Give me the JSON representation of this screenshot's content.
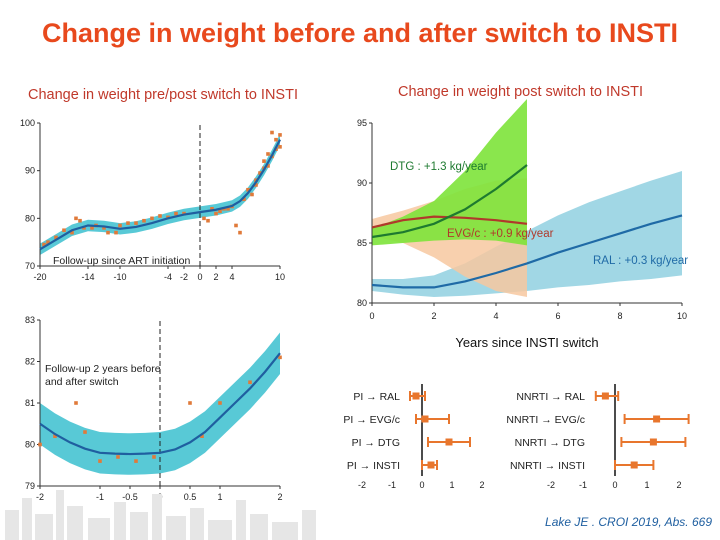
{
  "colors": {
    "title": "#e8491d",
    "subtitle": "#c0392b",
    "fit_line": "#1f5fa0",
    "band": "#3bbfcf",
    "points": "#e07a3a",
    "evg_band": "#f7c8a0",
    "evg_line": "#b0392b",
    "dtg_band": "#7de33a",
    "dtg_line": "#1e7a30",
    "ral_band": "#90d0e0",
    "ral_line": "#1f6aa6",
    "forest": "#e8762d",
    "footer": "#1f5fa0"
  },
  "main_title": "Change in weight before and after switch to INSTI",
  "left_title": "Change in weight pre/post switch to INSTI",
  "right_title": "Change in weight post switch to INSTI",
  "footer": "Lake JE . CROI 2019, Abs. 669",
  "chart_data": [
    {
      "id": "followup-art",
      "type": "scatter",
      "annotation": "Follow-up since ART initiation",
      "xlim": [
        -20,
        10
      ],
      "ylim": [
        70,
        100
      ],
      "x_ticks": [
        -20,
        -14,
        -10,
        -4,
        -2,
        0,
        2,
        4,
        10
      ],
      "x_tick_labels": [
        "-20",
        "-14",
        "-10",
        "-4",
        "-2",
        "0",
        "2",
        "4",
        "10"
      ],
      "y_ticks": [
        70,
        80,
        90,
        100
      ],
      "y_tick_labels": [
        "70",
        "80",
        "90",
        "100"
      ],
      "vline": 0,
      "fit": {
        "x": [
          -20,
          -18,
          -16,
          -14,
          -12,
          -10,
          -8,
          -6,
          -4,
          -2,
          0,
          2,
          4,
          5,
          6,
          7,
          8,
          9,
          10
        ],
        "y": [
          73.5,
          75.5,
          77.5,
          78.5,
          78.3,
          77.8,
          78.2,
          79.0,
          80.0,
          80.8,
          81.3,
          81.8,
          82.6,
          83.6,
          85.3,
          87.6,
          90.2,
          93.2,
          96.5
        ]
      },
      "band_half_width": 1.2,
      "points": [
        [
          -19.5,
          74.5
        ],
        [
          -19,
          75
        ],
        [
          -18,
          76
        ],
        [
          -17,
          77.5
        ],
        [
          -16,
          77
        ],
        [
          -15.5,
          80
        ],
        [
          -15,
          79.5
        ],
        [
          -14.5,
          78
        ],
        [
          -13.5,
          78
        ],
        [
          -13,
          78.5
        ],
        [
          -12,
          78
        ],
        [
          -11.5,
          77
        ],
        [
          -10.5,
          77
        ],
        [
          -10,
          78.5
        ],
        [
          -9,
          79
        ],
        [
          -8,
          79
        ],
        [
          -7,
          79.5
        ],
        [
          -6,
          80
        ],
        [
          -5,
          80.5
        ],
        [
          -4,
          80.2
        ],
        [
          -3,
          81
        ],
        [
          -2,
          81
        ],
        [
          0.5,
          80
        ],
        [
          1,
          79.5
        ],
        [
          1.5,
          82
        ],
        [
          2,
          81
        ],
        [
          2.5,
          81.5
        ],
        [
          3,
          82
        ],
        [
          3.5,
          82
        ],
        [
          4,
          82.5
        ],
        [
          4.5,
          78.5
        ],
        [
          5,
          77
        ],
        [
          5.5,
          84
        ],
        [
          6,
          86
        ],
        [
          7,
          87
        ],
        [
          7.5,
          89.5
        ],
        [
          8,
          92
        ],
        [
          8.5,
          91
        ],
        [
          9,
          93
        ],
        [
          9.5,
          94.5
        ],
        [
          10,
          95
        ],
        [
          9.5,
          96.5
        ],
        [
          8.5,
          93.5
        ],
        [
          10,
          97.5
        ],
        [
          9,
          98
        ],
        [
          6.5,
          85
        ],
        [
          7,
          88
        ],
        [
          8,
          90.5
        ]
      ]
    },
    {
      "id": "followup-2y",
      "type": "scatter",
      "annotation": "Follow-up 2 years before and after switch",
      "xlim": [
        -2,
        2
      ],
      "ylim": [
        79,
        83
      ],
      "x_ticks": [
        -2,
        -1,
        -0.5,
        0,
        0.5,
        1,
        2
      ],
      "x_tick_labels": [
        "-2",
        "-1",
        "-0.5",
        "0",
        "0.5",
        "1",
        "2"
      ],
      "y_ticks": [
        79,
        80,
        81,
        82,
        83
      ],
      "y_tick_labels": [
        "79",
        "80",
        "81",
        "82",
        "83"
      ],
      "vline": 0,
      "fit": {
        "x": [
          -2,
          -1.75,
          -1.5,
          -1.25,
          -1,
          -0.75,
          -0.5,
          -0.25,
          0,
          0.25,
          0.5,
          0.75,
          1,
          1.25,
          1.5,
          1.75,
          2
        ],
        "y": [
          80.5,
          80.25,
          80.05,
          79.9,
          79.8,
          79.78,
          79.77,
          79.78,
          79.8,
          79.88,
          80.05,
          80.3,
          80.65,
          81.0,
          81.35,
          81.75,
          82.2
        ]
      },
      "band_half_width": 0.5,
      "points": [
        [
          -2,
          80
        ],
        [
          -1.75,
          80.2
        ],
        [
          -1.4,
          81
        ],
        [
          -1.25,
          80.3
        ],
        [
          -1,
          79.6
        ],
        [
          -0.7,
          79.7
        ],
        [
          -0.4,
          79.6
        ],
        [
          -0.1,
          79.7
        ],
        [
          0.5,
          81
        ],
        [
          0.7,
          80.2
        ],
        [
          1,
          81
        ],
        [
          1.5,
          81.5
        ],
        [
          2,
          82.1
        ]
      ]
    },
    {
      "id": "post-switch",
      "type": "line",
      "xlabel": "Years since INSTI switch",
      "xlim": [
        0,
        10
      ],
      "ylim": [
        80,
        95
      ],
      "x_ticks": [
        0,
        2,
        4,
        6,
        8,
        10
      ],
      "x_tick_labels": [
        "0",
        "2",
        "4",
        "6",
        "8",
        "10"
      ],
      "y_ticks": [
        80,
        85,
        90,
        95
      ],
      "y_tick_labels": [
        "80",
        "85",
        "90",
        "95"
      ],
      "series": [
        {
          "name": "EVG/c",
          "label": "EVG/c : +0.9 kg/year",
          "x": [
            0,
            1,
            2,
            3,
            4,
            5
          ],
          "y": [
            86.3,
            86.9,
            87.2,
            87.1,
            86.9,
            86.6
          ],
          "lower": [
            85.6,
            85.0,
            83.8,
            82.2,
            81.0,
            80.5
          ],
          "upper": [
            87.0,
            87.7,
            88.5,
            89.5,
            90.2,
            90.4
          ]
        },
        {
          "name": "DTG",
          "label": "DTG : +1.3 kg/year",
          "x": [
            0,
            1,
            2,
            3,
            4,
            5
          ],
          "y": [
            85.5,
            85.9,
            86.6,
            87.8,
            89.5,
            91.5
          ],
          "lower": [
            84.8,
            85.0,
            85.2,
            85.3,
            85.2,
            84.8
          ],
          "upper": [
            86.2,
            87.2,
            88.5,
            91.0,
            94.2,
            97.0
          ]
        },
        {
          "name": "RAL",
          "label": "RAL : +0.3 kg/year",
          "x": [
            0,
            1,
            2,
            3,
            4,
            5,
            6,
            7,
            8,
            9,
            10
          ],
          "y": [
            81.5,
            81.3,
            81.3,
            81.8,
            82.5,
            83.3,
            84.2,
            85.0,
            85.8,
            86.6,
            87.3
          ],
          "lower": [
            81.0,
            80.7,
            80.5,
            80.6,
            80.8,
            81.0,
            81.3,
            81.5,
            81.8,
            82.0,
            82.3
          ],
          "upper": [
            82.0,
            82.0,
            82.3,
            83.3,
            84.7,
            86.0,
            87.3,
            88.4,
            89.3,
            90.2,
            91.0
          ]
        }
      ]
    },
    {
      "id": "forest-pi",
      "type": "scatter",
      "group": "PI",
      "xlim": [
        -2,
        2
      ],
      "x_ticks": [
        -2,
        -1,
        0,
        1,
        2
      ],
      "x_tick_labels": [
        "-2",
        "-1",
        "0",
        "1",
        "2"
      ],
      "rows": [
        {
          "label": "PI → RAL",
          "est": -0.2,
          "lo": -0.4,
          "hi": 0.1
        },
        {
          "label": "PI → EVG/c",
          "est": 0.1,
          "lo": -0.2,
          "hi": 0.9
        },
        {
          "label": "PI → DTG",
          "est": 0.9,
          "lo": 0.2,
          "hi": 1.6
        },
        {
          "label": "PI → INSTI",
          "est": 0.3,
          "lo": 0.0,
          "hi": 0.5
        }
      ]
    },
    {
      "id": "forest-nnrti",
      "type": "scatter",
      "group": "NNRTI",
      "xlim": [
        -2,
        2
      ],
      "x_ticks": [
        -2,
        -1,
        0,
        1,
        2
      ],
      "x_tick_labels": [
        "-2",
        "-1",
        "0",
        "1",
        "2"
      ],
      "rows": [
        {
          "label": "NNRTI → RAL",
          "est": -0.3,
          "lo": -0.6,
          "hi": 0.1
        },
        {
          "label": "NNRTI → EVG/c",
          "est": 1.3,
          "lo": 0.3,
          "hi": 2.3
        },
        {
          "label": "NNRTI → DTG",
          "est": 1.2,
          "lo": 0.2,
          "hi": 2.2
        },
        {
          "label": "NNRTI → INSTI",
          "est": 0.6,
          "lo": 0.0,
          "hi": 1.2
        }
      ]
    }
  ]
}
